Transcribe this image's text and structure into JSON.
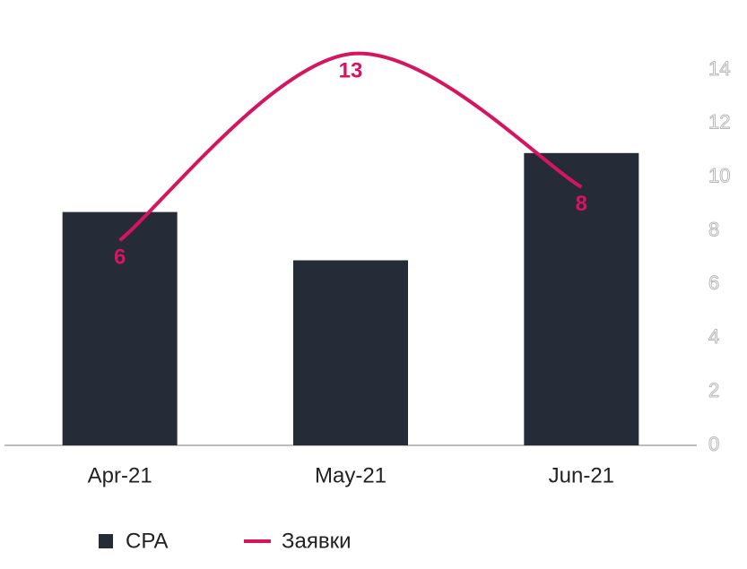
{
  "chart_data": {
    "type": "bar-line",
    "categories": [
      "Apr-21",
      "May-21",
      "Jun-21"
    ],
    "series": [
      {
        "name": "CPA",
        "color": "#262b38",
        "type": "bar",
        "values": [
          8.7,
          6.9,
          10.9
        ]
      },
      {
        "name": "Заявки",
        "color": "#d6145f",
        "type": "line",
        "axis": "y2",
        "values": [
          6,
          13,
          8
        ]
      }
    ],
    "ylim": [
      0,
      14
    ],
    "yticks": [
      0,
      2,
      4,
      6,
      8,
      10,
      12,
      14
    ],
    "y2lim": [
      -1.7,
      12.4
    ],
    "legend": "bottom"
  }
}
